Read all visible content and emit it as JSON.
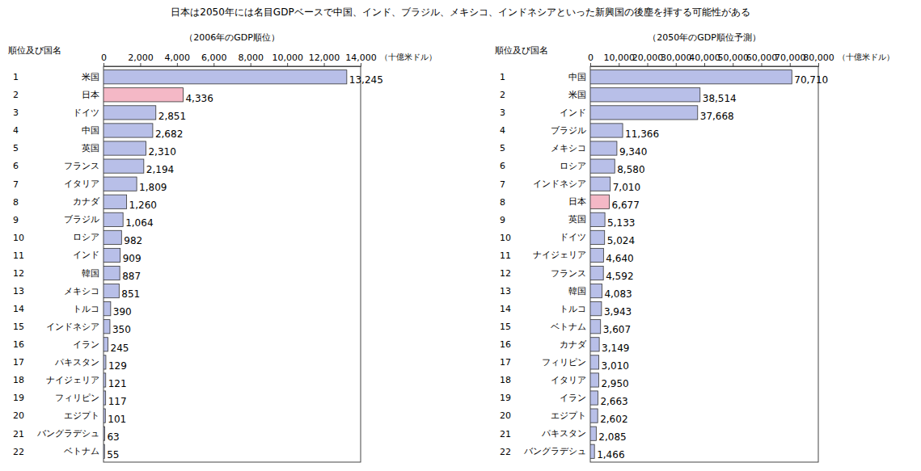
{
  "title": "日本は2050年には名目GDPベースで中国、インド、ブラジル、メキシコ、インドネシアといった新興国の後塵を拝する可能性がある",
  "chart_data": [
    {
      "type": "bar",
      "orientation": "horizontal",
      "title": "（2006年のGDP順位）",
      "category_header": "順位及び国名",
      "x_label": "（十億米ドル）",
      "ranks": [
        1,
        2,
        3,
        4,
        5,
        6,
        7,
        8,
        9,
        10,
        11,
        12,
        13,
        14,
        15,
        16,
        17,
        18,
        19,
        20,
        21,
        22
      ],
      "categories": [
        "米国",
        "日本",
        "ドイツ",
        "中国",
        "英国",
        "フランス",
        "イタリア",
        "カナダ",
        "ブラジル",
        "ロシア",
        "インド",
        "韓国",
        "メキシコ",
        "トルコ",
        "インドネシア",
        "イラン",
        "パキスタン",
        "ナイジェリア",
        "フィリピン",
        "エジプト",
        "バングラデシュ",
        "ベトナム"
      ],
      "values": [
        13245,
        4336,
        2851,
        2682,
        2310,
        2194,
        1809,
        1260,
        1064,
        982,
        909,
        887,
        851,
        390,
        350,
        245,
        129,
        121,
        117,
        101,
        63,
        55
      ],
      "value_labels": [
        "13,245",
        "4,336",
        "2,851",
        "2,682",
        "2,310",
        "2,194",
        "1,809",
        "1,260",
        "1,064",
        "982",
        "909",
        "887",
        "851",
        "390",
        "350",
        "245",
        "129",
        "121",
        "117",
        "101",
        "63",
        "55"
      ],
      "data_labels": true,
      "colors": [
        "#b8bfe8",
        "#f4b8c6",
        "#b8bfe8",
        "#b8bfe8",
        "#b8bfe8",
        "#b8bfe8",
        "#b8bfe8",
        "#b8bfe8",
        "#b8bfe8",
        "#b8bfe8",
        "#b8bfe8",
        "#b8bfe8",
        "#b8bfe8",
        "#b8bfe8",
        "#b8bfe8",
        "#b8bfe8",
        "#b8bfe8",
        "#b8bfe8",
        "#b8bfe8",
        "#b8bfe8",
        "#b8bfe8",
        "#b8bfe8"
      ],
      "xlim": [
        0,
        14000
      ],
      "xticks": [
        0,
        {
          "value": 2000,
          "label": "2,000"
        },
        {
          "value": 4000,
          "label": "4,000"
        },
        {
          "value": 6000,
          "label": "6,000"
        },
        {
          "value": 8000,
          "label": "8,000"
        },
        {
          "value": 10000,
          "label": "10,000"
        },
        {
          "value": 12000,
          "label": "12,000"
        },
        {
          "value": 14000,
          "label": "14,000"
        }
      ],
      "grid": false
    },
    {
      "type": "bar",
      "orientation": "horizontal",
      "title": "（2050年のGDP順位予測）",
      "category_header": "順位及び国名",
      "x_label": "（十億米ドル）",
      "ranks": [
        1,
        2,
        3,
        4,
        5,
        6,
        7,
        8,
        9,
        10,
        11,
        12,
        13,
        14,
        15,
        16,
        17,
        18,
        19,
        20,
        21,
        22
      ],
      "categories": [
        "中国",
        "米国",
        "インド",
        "ブラジル",
        "メキシコ",
        "ロシア",
        "インドネシア",
        "日本",
        "英国",
        "ドイツ",
        "ナイジェリア",
        "フランス",
        "韓国",
        "トルコ",
        "ベトナム",
        "カナダ",
        "フィリピン",
        "イタリア",
        "イラン",
        "エジプト",
        "パキスタン",
        "バングラデシュ"
      ],
      "values": [
        70710,
        38514,
        37668,
        11366,
        9340,
        8580,
        7010,
        6677,
        5133,
        5024,
        4640,
        4592,
        4083,
        3943,
        3607,
        3149,
        3010,
        2950,
        2663,
        2602,
        2085,
        1466
      ],
      "value_labels": [
        "70,710",
        "38,514",
        "37,668",
        "11,366",
        "9,340",
        "8,580",
        "7,010",
        "6,677",
        "5,133",
        "5,024",
        "4,640",
        "4,592",
        "4,083",
        "3,943",
        "3,607",
        "3,149",
        "3,010",
        "2,950",
        "2,663",
        "2,602",
        "2,085",
        "1,466"
      ],
      "data_labels": true,
      "colors": [
        "#b8bfe8",
        "#b8bfe8",
        "#b8bfe8",
        "#b8bfe8",
        "#b8bfe8",
        "#b8bfe8",
        "#b8bfe8",
        "#f4b8c6",
        "#b8bfe8",
        "#b8bfe8",
        "#b8bfe8",
        "#b8bfe8",
        "#b8bfe8",
        "#b8bfe8",
        "#b8bfe8",
        "#b8bfe8",
        "#b8bfe8",
        "#b8bfe8",
        "#b8bfe8",
        "#b8bfe8",
        "#b8bfe8",
        "#b8bfe8"
      ],
      "xlim": [
        0,
        80000
      ],
      "xticks": [
        0,
        {
          "value": 10000,
          "label": "10,000"
        },
        {
          "value": 20000,
          "label": "20,000"
        },
        {
          "value": 30000,
          "label": "30,000"
        },
        {
          "value": 40000,
          "label": "40,000"
        },
        {
          "value": 50000,
          "label": "50,000"
        },
        {
          "value": 60000,
          "label": "60,000"
        },
        {
          "value": 70000,
          "label": "70,000"
        },
        {
          "value": 80000,
          "label": "80,000"
        }
      ],
      "grid": false
    }
  ]
}
